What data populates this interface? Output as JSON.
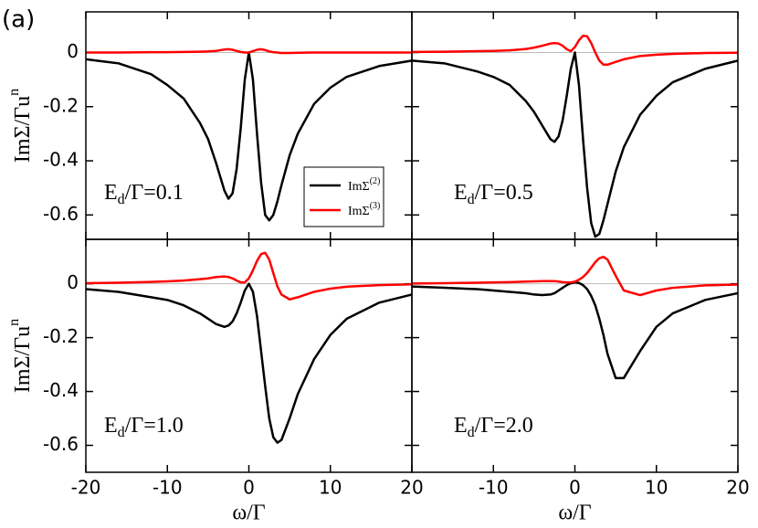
{
  "panel_label": "(a)",
  "chart_data": [
    {
      "type": "line",
      "xlim": [
        -20,
        20
      ],
      "ylim": [
        -0.69,
        0.15
      ],
      "yticks": [
        -0.6,
        -0.4,
        -0.2,
        0
      ],
      "zero_line": true,
      "ylabel": "ImΣ/Γu",
      "ylabel_sup": "n",
      "annotation": {
        "main": "E",
        "sub": "d",
        "rest": "/Γ=0.1"
      },
      "x": [
        -20,
        -16,
        -12,
        -10,
        -8,
        -6,
        -5,
        -4,
        -3,
        -2.5,
        -2,
        -1.5,
        -1,
        -0.5,
        0,
        0.5,
        1,
        1.5,
        2,
        2.5,
        3,
        3.5,
        4,
        5,
        6,
        8,
        10,
        12,
        16,
        20
      ],
      "series": [
        {
          "name": "ImΣ",
          "name_sup": "(2)",
          "color": "#000000",
          "values": [
            -0.025,
            -0.04,
            -0.08,
            -0.12,
            -0.17,
            -0.26,
            -0.32,
            -0.41,
            -0.51,
            -0.54,
            -0.52,
            -0.43,
            -0.28,
            -0.1,
            0,
            -0.1,
            -0.3,
            -0.48,
            -0.6,
            -0.62,
            -0.6,
            -0.55,
            -0.49,
            -0.38,
            -0.3,
            -0.19,
            -0.13,
            -0.09,
            -0.05,
            -0.03
          ]
        },
        {
          "name": "ImΣ",
          "name_sup": "(3)",
          "color": "#ff0000",
          "values": [
            0,
            0,
            0.001,
            0.001,
            0.002,
            0.003,
            0.004,
            0.006,
            0.011,
            0.012,
            0.01,
            0.006,
            0.002,
            0,
            0,
            0.005,
            0.01,
            0.012,
            0.009,
            0.004,
            0.001,
            0,
            -0.002,
            -0.002,
            -0.001,
            0,
            0,
            0,
            0,
            0
          ]
        }
      ],
      "legend": true
    },
    {
      "type": "line",
      "xlim": [
        -20,
        20
      ],
      "ylim": [
        -0.69,
        0.15
      ],
      "zero_line": true,
      "annotation": {
        "main": "E",
        "sub": "d",
        "rest": "/Γ=0.5"
      },
      "x": [
        -20,
        -16,
        -12,
        -10,
        -8,
        -6,
        -5,
        -4,
        -3,
        -2.5,
        -2,
        -1.5,
        -1,
        -0.5,
        0,
        0.5,
        1,
        1.5,
        2,
        2.5,
        3,
        3.5,
        4,
        5,
        6,
        8,
        10,
        12,
        16,
        20
      ],
      "series": [
        {
          "color": "#000000",
          "values": [
            -0.03,
            -0.04,
            -0.07,
            -0.09,
            -0.12,
            -0.18,
            -0.22,
            -0.27,
            -0.32,
            -0.33,
            -0.31,
            -0.25,
            -0.16,
            -0.06,
            0,
            -0.12,
            -0.32,
            -0.5,
            -0.63,
            -0.68,
            -0.67,
            -0.62,
            -0.56,
            -0.44,
            -0.35,
            -0.23,
            -0.16,
            -0.11,
            -0.06,
            -0.03
          ]
        },
        {
          "color": "#ff0000",
          "values": [
            0.002,
            0.003,
            0.005,
            0.006,
            0.008,
            0.013,
            0.018,
            0.025,
            0.033,
            0.035,
            0.033,
            0.025,
            0.012,
            0.005,
            0.02,
            0.045,
            0.062,
            0.06,
            0.035,
            0,
            -0.03,
            -0.045,
            -0.045,
            -0.035,
            -0.025,
            -0.013,
            -0.008,
            -0.005,
            -0.002,
            -0.001
          ]
        }
      ]
    },
    {
      "type": "line",
      "xlim": [
        -20,
        20
      ],
      "ylim": [
        -0.7,
        0.165
      ],
      "yticks": [
        -0.6,
        -0.4,
        -0.2,
        0
      ],
      "xticks": [
        -20,
        -10,
        0,
        10,
        20
      ],
      "zero_line": true,
      "ylabel": "ImΣ/Γu",
      "ylabel_sup": "n",
      "xlabel": "ω/Γ",
      "annotation": {
        "main": "E",
        "sub": "d",
        "rest": "/Γ=1.0"
      },
      "x": [
        -20,
        -16,
        -12,
        -10,
        -8,
        -6,
        -5,
        -4,
        -3,
        -2.5,
        -2,
        -1.5,
        -1,
        -0.5,
        0,
        0.5,
        1,
        1.5,
        2,
        2.5,
        3,
        3.5,
        4,
        5,
        6,
        8,
        10,
        12,
        16,
        20
      ],
      "series": [
        {
          "color": "#000000",
          "values": [
            -0.02,
            -0.03,
            -0.05,
            -0.06,
            -0.08,
            -0.11,
            -0.13,
            -0.15,
            -0.16,
            -0.155,
            -0.14,
            -0.11,
            -0.07,
            -0.025,
            0,
            -0.03,
            -0.12,
            -0.25,
            -0.38,
            -0.5,
            -0.57,
            -0.59,
            -0.58,
            -0.5,
            -0.41,
            -0.28,
            -0.19,
            -0.13,
            -0.07,
            -0.04
          ]
        },
        {
          "color": "#ff0000",
          "values": [
            0.002,
            0.004,
            0.007,
            0.009,
            0.012,
            0.017,
            0.02,
            0.025,
            0.027,
            0.025,
            0.02,
            0.012,
            0.005,
            0.005,
            0.02,
            0.05,
            0.085,
            0.11,
            0.115,
            0.09,
            0.04,
            -0.01,
            -0.04,
            -0.058,
            -0.05,
            -0.03,
            -0.018,
            -0.011,
            -0.005,
            -0.002
          ]
        }
      ]
    },
    {
      "type": "line",
      "xlim": [
        -20,
        20
      ],
      "ylim": [
        -0.7,
        0.165
      ],
      "xticks": [
        -10,
        0,
        10,
        20
      ],
      "zero_line": true,
      "xlabel": "ω/Γ",
      "annotation": {
        "main": "E",
        "sub": "d",
        "rest": "/Γ=2.0"
      },
      "x": [
        -20,
        -16,
        -12,
        -10,
        -8,
        -6,
        -5,
        -4,
        -3,
        -2.5,
        -2,
        -1.5,
        -1,
        -0.5,
        0,
        0.5,
        1,
        1.5,
        2,
        2.5,
        3,
        3.5,
        4,
        5,
        6,
        8,
        10,
        12,
        16,
        20
      ],
      "series": [
        {
          "color": "#000000",
          "values": [
            -0.01,
            -0.015,
            -0.02,
            -0.025,
            -0.03,
            -0.035,
            -0.04,
            -0.042,
            -0.04,
            -0.035,
            -0.025,
            -0.015,
            -0.005,
            0.002,
            0.005,
            0.003,
            -0.005,
            -0.02,
            -0.045,
            -0.08,
            -0.13,
            -0.19,
            -0.26,
            -0.35,
            -0.35,
            -0.25,
            -0.16,
            -0.11,
            -0.06,
            -0.035
          ]
        },
        {
          "color": "#ff0000",
          "values": [
            0.001,
            0.002,
            0.004,
            0.005,
            0.006,
            0.008,
            0.009,
            0.01,
            0.01,
            0.01,
            0.008,
            0.006,
            0.005,
            0.005,
            0.008,
            0.015,
            0.025,
            0.04,
            0.06,
            0.08,
            0.095,
            0.1,
            0.09,
            0.03,
            -0.025,
            -0.042,
            -0.025,
            -0.015,
            -0.006,
            -0.003
          ]
        }
      ]
    }
  ]
}
